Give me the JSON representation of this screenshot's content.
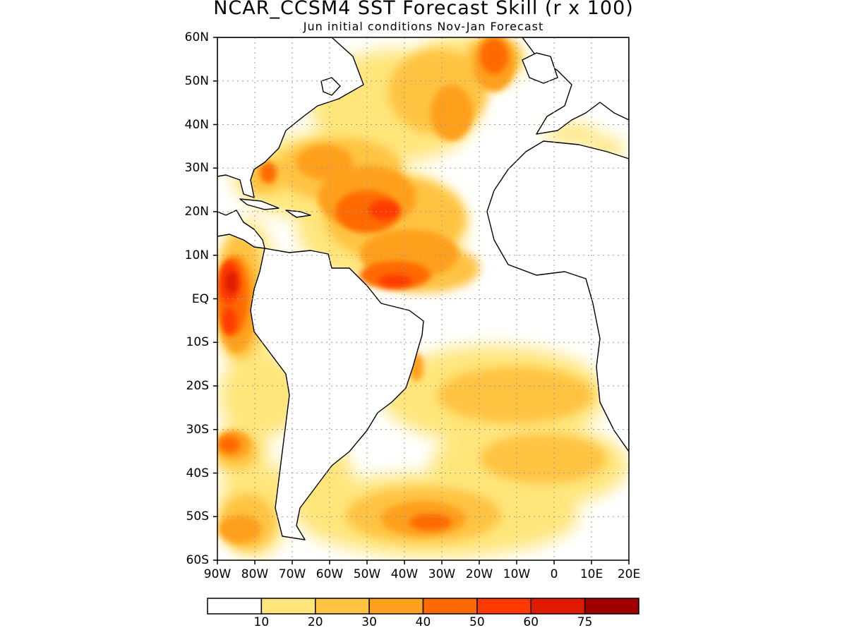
{
  "header": {
    "title": "NCAR_CCSM4 SST Forecast Skill (r x 100)",
    "subtitle": "Jun initial conditions  Nov-Jan Forecast"
  },
  "map": {
    "region": "Atlantic Ocean",
    "lon_range": [
      -90,
      20
    ],
    "lat_range": [
      -60,
      60
    ],
    "grid": "dotted",
    "lat_labels": [
      "60N",
      "50N",
      "40N",
      "30N",
      "20N",
      "10N",
      "EQ",
      "10S",
      "20S",
      "30S",
      "40S",
      "50S",
      "60S"
    ],
    "lon_labels": [
      "90W",
      "80W",
      "70W",
      "60W",
      "50W",
      "40W",
      "30W",
      "20W",
      "10W",
      "0",
      "10E",
      "20E"
    ]
  },
  "colorbar": {
    "colors": [
      "#ffffff",
      "#ffe57a",
      "#ffc342",
      "#ffa01f",
      "#ff6a00",
      "#ff3a00",
      "#e01a00",
      "#a10000"
    ],
    "labels": [
      "10",
      "20",
      "30",
      "40",
      "50",
      "60",
      "75"
    ]
  }
}
